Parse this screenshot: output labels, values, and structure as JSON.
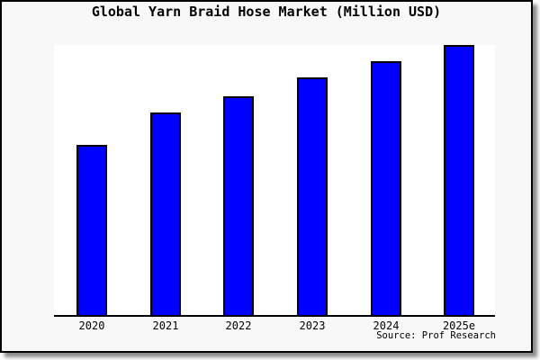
{
  "source_note": "Source: Prof Research",
  "chart_data": {
    "type": "bar",
    "title": "Global Yarn Braid Hose Market (Million USD)",
    "categories": [
      "2020",
      "2021",
      "2022",
      "2023",
      "2024",
      "2025e"
    ],
    "values": [
      63,
      75,
      81,
      88,
      94,
      100
    ],
    "value_scale": "relative index estimated from bar heights; no y-axis, tick labels or gridlines are shown (tallest bar 2025e = 100)",
    "xlabel": "",
    "ylabel": "",
    "ylim": [
      0,
      100
    ],
    "grid": false,
    "legend": false,
    "annotations": [
      "Source: Prof Research"
    ],
    "colors": {
      "bar_fill": "#0000ff",
      "bar_edge": "#000000",
      "plot_background": "#ffffff",
      "figure_background": "#f8f8f8",
      "axis_line": "#000000",
      "text": "#000000"
    }
  }
}
